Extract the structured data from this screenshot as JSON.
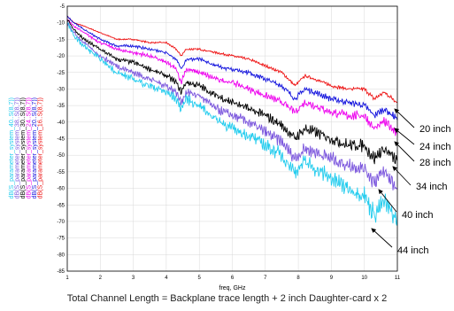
{
  "chart_data": {
    "type": "line",
    "xlabel": "freq, GHz",
    "ylabel": "",
    "xlim": [
      1,
      11
    ],
    "ylim": [
      -85,
      -5
    ],
    "x_ticks": [
      1,
      2,
      3,
      4,
      5,
      6,
      7,
      8,
      9,
      10,
      11
    ],
    "y_ticks": [
      -5,
      -10,
      -15,
      -20,
      -25,
      -30,
      -35,
      -40,
      -45,
      -50,
      -55,
      -60,
      -65,
      -70,
      -75,
      -80,
      -85
    ],
    "x": [
      1.0,
      1.2,
      1.5,
      2.0,
      2.5,
      3.0,
      3.5,
      4.0,
      4.3,
      4.45,
      4.6,
      5.0,
      5.5,
      6.0,
      6.5,
      7.0,
      7.5,
      7.9,
      8.2,
      8.5,
      9.0,
      9.5,
      10.0,
      10.3,
      10.6,
      11.0
    ],
    "series": [
      {
        "name": "dB(S_parameter_system_16..S(8,7))",
        "color": "#ee1111",
        "values": [
          -8,
          -10,
          -11,
          -13,
          -15,
          -15,
          -16,
          -16,
          -18,
          -20,
          -18,
          -18,
          -19,
          -20,
          -21,
          -23,
          -25,
          -29,
          -26,
          -27,
          -29,
          -30,
          -30,
          -33,
          -31,
          -34
        ]
      },
      {
        "name": "dB(S_parameter_system_20..S(8,7))",
        "color": "#1111dd",
        "values": [
          -8,
          -10,
          -12,
          -15,
          -17,
          -17,
          -18,
          -19,
          -21,
          -24,
          -21,
          -21,
          -23,
          -24,
          -25,
          -27,
          -29,
          -33,
          -30,
          -31,
          -33,
          -34,
          -35,
          -38,
          -36,
          -39
        ]
      },
      {
        "name": "dB(S_parameter_system_24..S(8,7))",
        "color": "#ee00ee",
        "values": [
          -9,
          -11,
          -13,
          -16,
          -18,
          -19,
          -20,
          -22,
          -24,
          -28,
          -24,
          -25,
          -27,
          -28,
          -30,
          -32,
          -34,
          -37,
          -34,
          -35,
          -37,
          -38,
          -38,
          -42,
          -40,
          -43
        ]
      },
      {
        "name": "dB(S_parameter_system_30..S(8,7))",
        "color": "#000000",
        "values": [
          -9,
          -12,
          -15,
          -18,
          -21,
          -22,
          -24,
          -26,
          -28,
          -31,
          -28,
          -29,
          -32,
          -34,
          -36,
          -38,
          -41,
          -45,
          -42,
          -43,
          -45,
          -47,
          -47,
          -51,
          -48,
          -52
        ]
      },
      {
        "name": "dB(S_parameter_system_38..S(8,7))",
        "color": "#7a55dd",
        "values": [
          -10,
          -13,
          -16,
          -20,
          -23,
          -25,
          -27,
          -29,
          -31,
          -34,
          -31,
          -32,
          -36,
          -38,
          -40,
          -43,
          -46,
          -51,
          -48,
          -49,
          -51,
          -53,
          -54,
          -58,
          -55,
          -60
        ]
      },
      {
        "name": "dB(S_parameter_system_40..S(8,7))",
        "color": "#22ccee",
        "values": [
          -10,
          -14,
          -17,
          -21,
          -25,
          -27,
          -29,
          -31,
          -33,
          -36,
          -33,
          -35,
          -39,
          -42,
          -44,
          -47,
          -50,
          -55,
          -52,
          -54,
          -57,
          -60,
          -62,
          -68,
          -64,
          -70
        ]
      }
    ],
    "annotations": [
      "20 inch",
      "24 inch",
      "28 inch",
      "34 inch",
      "40 inch",
      "44 inch"
    ]
  },
  "caption": "Total Channel Length = Backplane trace length + 2 inch Daughter-card x 2"
}
